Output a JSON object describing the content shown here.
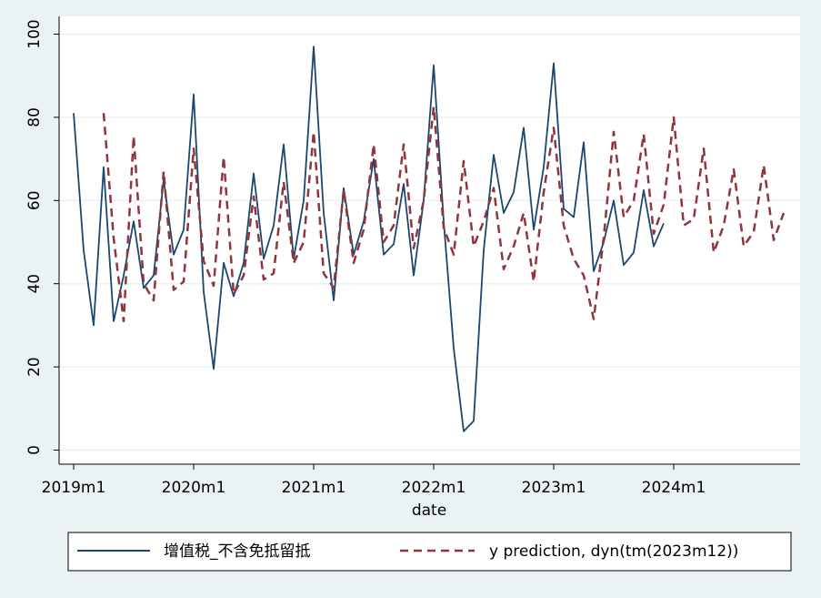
{
  "chart_data": {
    "type": "line",
    "title": "",
    "xlabel": "date",
    "ylabel": "",
    "xlim": [
      "2018m12",
      "2025m2"
    ],
    "ylim": [
      0,
      100
    ],
    "grid": true,
    "legend_position": "bottom",
    "colors": {
      "series_actual": "#1a476f",
      "series_prediction": "#90353b",
      "plot_background": "#ffffff",
      "outer_background": "#eaf2f3",
      "gridline": "#eaf2f3"
    },
    "y_ticks": [
      "0",
      "20",
      "40",
      "60",
      "80",
      "100"
    ],
    "x_ticks": [
      "2019m1",
      "2020m1",
      "2021m1",
      "2022m1",
      "2023m1",
      "2024m1"
    ],
    "series": [
      {
        "name": "增值税_不含免抵留抵",
        "style": "solid",
        "start": "2019m1",
        "values": [
          81,
          48,
          30,
          68,
          31,
          42,
          55,
          39,
          42,
          65,
          47,
          53,
          85.5,
          38,
          19.5,
          45,
          37,
          45,
          66.5,
          46,
          54,
          73.5,
          46,
          60,
          97,
          57,
          36,
          63,
          47,
          55,
          70,
          47,
          49.5,
          64,
          42,
          60,
          92.5,
          55,
          24.5,
          4.5,
          7,
          48,
          71,
          57,
          62,
          77.5,
          53,
          68,
          93,
          58,
          56,
          74,
          43,
          50,
          60,
          44.5,
          47.5,
          62.5,
          49,
          54.5
        ]
      },
      {
        "name": "y prediction, dyn(tm(2023m12))",
        "style": "dashed",
        "start": "2019m4",
        "values": [
          81,
          51,
          31,
          75.5,
          40,
          36,
          67,
          38.5,
          40.5,
          72.5,
          45.5,
          39.5,
          70.5,
          37.5,
          42,
          61,
          41,
          42.5,
          64.5,
          45,
          50,
          76.5,
          42.5,
          39,
          62.5,
          45,
          53,
          73.5,
          50,
          54,
          73.5,
          48.5,
          60,
          82.5,
          53.5,
          47,
          69.5,
          49,
          55,
          63,
          43.5,
          49,
          57,
          40.5,
          62,
          77.5,
          54,
          46,
          42,
          31.5,
          51,
          76.5,
          56,
          60,
          76,
          52,
          59,
          80,
          54,
          55.5,
          72.5,
          47.5,
          54,
          67.5,
          49,
          52.5,
          68.5,
          50.5,
          57
        ]
      }
    ]
  }
}
